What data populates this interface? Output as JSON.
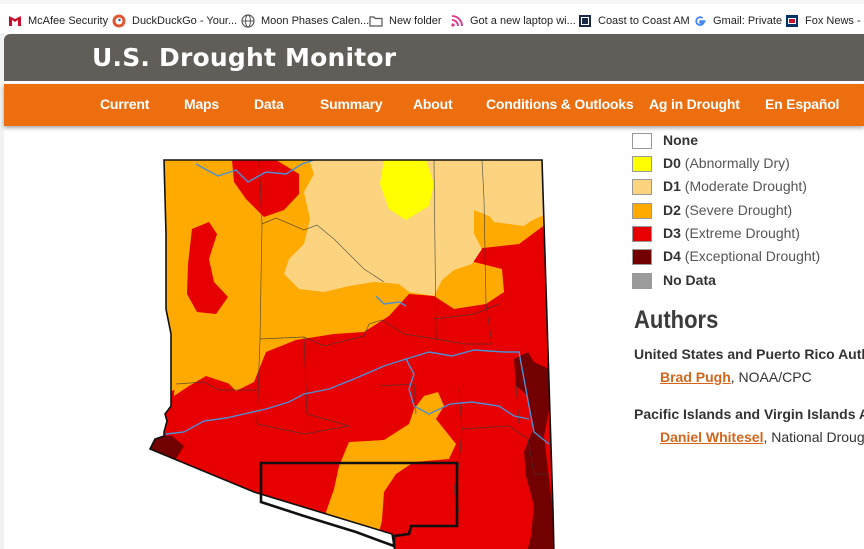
{
  "bookmarks": [
    {
      "label": "McAfee Security",
      "icon": "mcafee-icon"
    },
    {
      "label": "DuckDuckGo - Your...",
      "icon": "duckduckgo-icon"
    },
    {
      "label": "Moon Phases Calen...",
      "icon": "globe-icon"
    },
    {
      "label": "New folder",
      "icon": "folder-icon"
    },
    {
      "label": "Got a new laptop wi...",
      "icon": "rss-icon"
    },
    {
      "label": "Coast to Coast AM",
      "icon": "coast-icon"
    },
    {
      "label": "Gmail: Private",
      "icon": "google-icon"
    },
    {
      "label": "Fox News - Br",
      "icon": "fox-icon"
    }
  ],
  "header": {
    "title": "U.S. Drought Monitor"
  },
  "nav": [
    "Current",
    "Maps",
    "Data",
    "Summary",
    "About",
    "Conditions & Outlooks",
    "Ag in Drought",
    "En Español"
  ],
  "legend": [
    {
      "code": "None",
      "desc": "",
      "color": "#ffffff"
    },
    {
      "code": "D0",
      "desc": "(Abnormally Dry)",
      "color": "#ffff00"
    },
    {
      "code": "D1",
      "desc": "(Moderate Drought)",
      "color": "#fcd37f"
    },
    {
      "code": "D2",
      "desc": "(Severe Drought)",
      "color": "#ffaa00"
    },
    {
      "code": "D3",
      "desc": "(Extreme Drought)",
      "color": "#e60000"
    },
    {
      "code": "D4",
      "desc": "(Exceptional Drought)",
      "color": "#730000"
    },
    {
      "code": "No Data",
      "desc": "",
      "color": "#9b9b9b"
    }
  ],
  "authors": {
    "heading": "Authors",
    "groups": [
      {
        "region": "United States and Puerto Rico Autho",
        "name": "Brad Pugh",
        "org": ", NOAA/CPC"
      },
      {
        "region": "Pacific Islands and Virgin Islands Aut",
        "name": "Daniel Whitesel",
        "org": ", National Drougl"
      }
    ]
  },
  "colors": {
    "header_bg": "#615d58",
    "nav_bg": "#ec6e0f",
    "link": "#d4661c"
  }
}
